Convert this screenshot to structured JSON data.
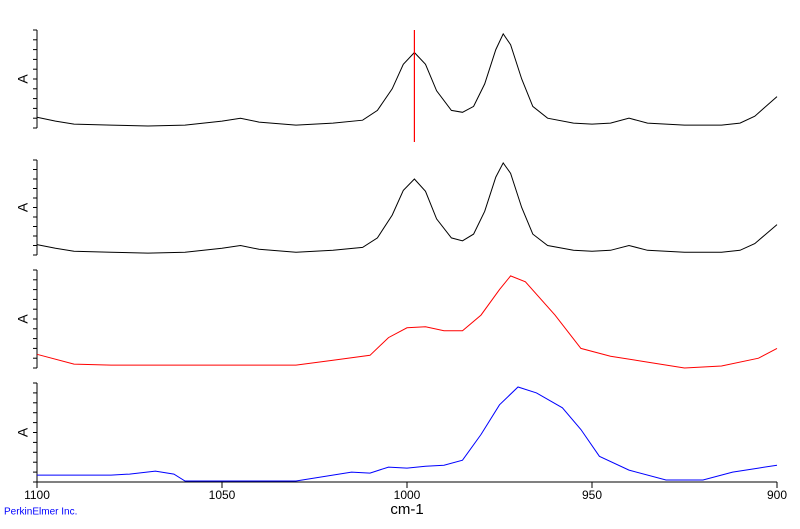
{
  "chart_data": {
    "type": "line",
    "xlabel": "cm-1",
    "xlim": [
      1100,
      900
    ],
    "xticks": [
      1100,
      1050,
      1000,
      950,
      900
    ],
    "footer": "PerkinElmer Inc.",
    "cursor": {
      "x": 998,
      "color": "#ff0000"
    },
    "series": [
      {
        "ylabel": "A",
        "color": "#000000",
        "ylim": [
          0,
          1
        ],
        "x": [
          1100,
          1095,
          1090,
          1080,
          1070,
          1060,
          1050,
          1045,
          1040,
          1030,
          1020,
          1012,
          1008,
          1004,
          1001,
          998,
          995,
          992,
          988,
          985,
          982,
          979,
          976,
          974,
          972,
          969,
          966,
          962,
          955,
          950,
          945,
          940,
          935,
          925,
          915,
          910,
          906,
          903,
          900
        ],
        "values": [
          0.11,
          0.07,
          0.04,
          0.03,
          0.02,
          0.03,
          0.07,
          0.1,
          0.06,
          0.03,
          0.05,
          0.08,
          0.18,
          0.4,
          0.65,
          0.77,
          0.65,
          0.38,
          0.18,
          0.16,
          0.22,
          0.45,
          0.8,
          0.96,
          0.85,
          0.5,
          0.22,
          0.1,
          0.05,
          0.04,
          0.05,
          0.1,
          0.05,
          0.03,
          0.03,
          0.05,
          0.12,
          0.22,
          0.32
        ]
      },
      {
        "ylabel": "A",
        "color": "#000000",
        "ylim": [
          0,
          1
        ],
        "x": [
          1100,
          1095,
          1090,
          1080,
          1070,
          1060,
          1050,
          1045,
          1040,
          1030,
          1020,
          1012,
          1008,
          1004,
          1001,
          998,
          995,
          992,
          988,
          985,
          982,
          979,
          976,
          974,
          972,
          969,
          966,
          962,
          955,
          950,
          945,
          940,
          935,
          925,
          915,
          910,
          906,
          903,
          900
        ],
        "values": [
          0.11,
          0.07,
          0.04,
          0.03,
          0.02,
          0.03,
          0.07,
          0.1,
          0.06,
          0.03,
          0.05,
          0.08,
          0.18,
          0.42,
          0.68,
          0.8,
          0.67,
          0.38,
          0.18,
          0.15,
          0.22,
          0.46,
          0.82,
          0.97,
          0.86,
          0.5,
          0.22,
          0.1,
          0.05,
          0.04,
          0.05,
          0.1,
          0.05,
          0.03,
          0.03,
          0.05,
          0.12,
          0.22,
          0.32
        ]
      },
      {
        "ylabel": "A",
        "color": "#ff0000",
        "ylim": [
          0,
          1
        ],
        "x": [
          1100,
          1090,
          1080,
          1070,
          1060,
          1050,
          1040,
          1030,
          1020,
          1010,
          1005,
          1000,
          995,
          990,
          985,
          980,
          975,
          972,
          968,
          960,
          953,
          945,
          935,
          925,
          915,
          905,
          900
        ],
        "values": [
          0.14,
          0.04,
          0.03,
          0.03,
          0.03,
          0.03,
          0.03,
          0.03,
          0.08,
          0.13,
          0.31,
          0.41,
          0.42,
          0.38,
          0.38,
          0.54,
          0.8,
          0.94,
          0.88,
          0.54,
          0.2,
          0.12,
          0.06,
          0.0,
          0.02,
          0.1,
          0.2
        ]
      },
      {
        "ylabel": "A",
        "color": "#0000ff",
        "ylim": [
          0,
          1
        ],
        "x": [
          1100,
          1090,
          1080,
          1075,
          1068,
          1063,
          1060,
          1045,
          1030,
          1015,
          1010,
          1005,
          1000,
          995,
          990,
          985,
          980,
          975,
          970,
          965,
          958,
          953,
          948,
          940,
          930,
          920,
          912,
          905,
          900
        ],
        "values": [
          0.07,
          0.07,
          0.07,
          0.08,
          0.11,
          0.08,
          0.01,
          0.01,
          0.01,
          0.1,
          0.09,
          0.15,
          0.14,
          0.16,
          0.17,
          0.22,
          0.48,
          0.78,
          0.96,
          0.9,
          0.75,
          0.53,
          0.26,
          0.12,
          0.02,
          0.02,
          0.1,
          0.14,
          0.17
        ]
      }
    ]
  }
}
